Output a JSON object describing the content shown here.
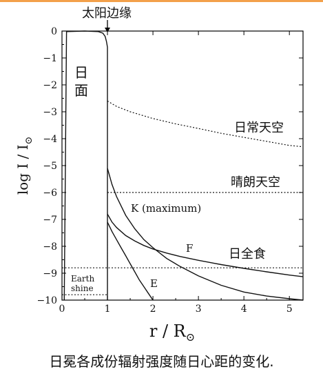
{
  "chart_data": {
    "type": "line",
    "xlabel": "r / R",
    "xlabel_sub": "⊙",
    "ylabel": "log  I / I",
    "ylabel_sub": "⊙",
    "xlim": [
      0,
      5.3
    ],
    "ylim": [
      -10,
      0
    ],
    "x_ticks": [
      0,
      1,
      2,
      3,
      4,
      5
    ],
    "y_ticks": [
      0,
      -1,
      -2,
      -3,
      -4,
      -5,
      -6,
      -7,
      -8,
      -9,
      -10
    ],
    "x_tick_labels": [
      "0",
      "1",
      "2",
      "3",
      "4",
      "5"
    ],
    "y_tick_labels": [
      "0",
      "−1",
      "−2",
      "−3",
      "−4",
      "−5",
      "−6",
      "−7",
      "−8",
      "−9",
      "−10"
    ],
    "annotations": {
      "limb": "太阳边缘",
      "disk": [
        "日",
        "面"
      ],
      "normal_sky": "日常天空",
      "clear_sky": "晴朗天空",
      "eclipse": "日全食",
      "earthshine": [
        "Earth",
        "shine"
      ]
    },
    "series": [
      {
        "name": "K (maximum)",
        "style": "solid",
        "x": [
          1.0,
          1.1,
          1.2,
          1.4,
          1.6,
          1.8,
          2.0,
          2.3,
          2.6,
          3.0,
          3.5,
          4.0,
          4.5,
          5.0,
          5.3
        ],
        "y": [
          -5.1,
          -5.7,
          -6.15,
          -6.85,
          -7.35,
          -7.75,
          -8.05,
          -8.45,
          -8.75,
          -9.1,
          -9.45,
          -9.7,
          -9.85,
          -9.95,
          -10.0
        ]
      },
      {
        "name": "F",
        "style": "solid",
        "x": [
          1.0,
          1.1,
          1.2,
          1.4,
          1.6,
          1.8,
          2.0,
          2.3,
          2.6,
          3.0,
          3.5,
          4.0,
          4.5,
          5.0,
          5.3
        ],
        "y": [
          -6.8,
          -7.1,
          -7.3,
          -7.6,
          -7.8,
          -7.97,
          -8.1,
          -8.25,
          -8.38,
          -8.52,
          -8.68,
          -8.82,
          -8.95,
          -9.07,
          -9.13
        ]
      },
      {
        "name": "E",
        "style": "solid",
        "x": [
          1.0,
          1.1,
          1.2,
          1.3,
          1.4,
          1.5,
          1.6,
          1.7,
          1.8,
          1.9,
          2.0
        ],
        "y": [
          -7.1,
          -7.45,
          -7.75,
          -8.05,
          -8.35,
          -8.65,
          -8.95,
          -9.25,
          -9.5,
          -9.75,
          -10.0
        ]
      },
      {
        "name": "日常天空",
        "style": "dotted",
        "x": [
          1.0,
          1.2,
          1.5,
          2.0,
          2.5,
          3.0,
          3.5,
          4.0,
          4.5,
          5.0,
          5.3
        ],
        "y": [
          -2.6,
          -2.8,
          -3.0,
          -3.25,
          -3.45,
          -3.62,
          -3.8,
          -3.95,
          -4.1,
          -4.25,
          -4.3
        ]
      },
      {
        "name": "晴朗天空",
        "style": "dotted",
        "x": [
          1.0,
          5.3
        ],
        "y": [
          -6.0,
          -6.0
        ]
      },
      {
        "name": "日全食",
        "style": "dotted",
        "x": [
          0,
          5.3
        ],
        "y": [
          -8.8,
          -8.8
        ]
      },
      {
        "name": "Earth shine",
        "style": "dotted",
        "x": [
          0,
          1.0
        ],
        "y": [
          -9.8,
          -9.8
        ]
      },
      {
        "name": "日面",
        "style": "solid",
        "x": [
          0.05,
          0.1,
          0.5,
          0.8,
          0.9,
          0.95,
          0.98,
          1.0,
          1.0
        ],
        "y": [
          -10.0,
          -0.02,
          0,
          -0.02,
          -0.08,
          -0.2,
          -0.4,
          -0.6,
          -10.0
        ]
      }
    ],
    "legend": "none",
    "grid": false
  },
  "caption": "日冕各成份辐射强度随日心距的变化."
}
